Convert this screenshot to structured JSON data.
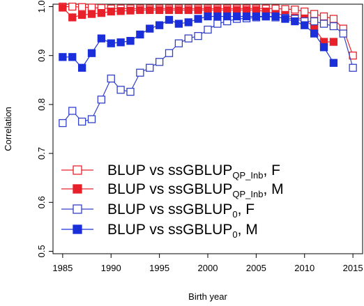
{
  "chart_data": {
    "type": "line",
    "xlabel": "Birth year",
    "ylabel": "Correlation",
    "xlim": [
      1984,
      2016
    ],
    "ylim": [
      0.495,
      1.005
    ],
    "xticks": [
      1985,
      1990,
      1995,
      2000,
      2005,
      2010,
      2015
    ],
    "yticks": [
      0.5,
      0.6,
      0.7,
      0.8,
      0.9,
      1.0
    ],
    "xtick_labels": [
      "1985",
      "1990",
      "1995",
      "2000",
      "2005",
      "2010",
      "2015"
    ],
    "ytick_labels": [
      "0.5",
      "0.6",
      "0.7",
      "0.8",
      "0.9",
      "1.0"
    ],
    "grid": false,
    "legend_position": "bottom-left",
    "series": [
      {
        "label_main": "BLUP vs ssGBLUP",
        "label_sub": "QP_Inb",
        "label_tail": ", F",
        "color": "#e8202a",
        "marker": "open-square",
        "x": [
          1985,
          1986,
          1987,
          1988,
          1989,
          1990,
          1991,
          1992,
          1993,
          1994,
          1995,
          1996,
          1997,
          1998,
          1999,
          2000,
          2001,
          2002,
          2003,
          2004,
          2005,
          2006,
          2007,
          2008,
          2009,
          2010,
          2011,
          2012,
          2013,
          2014,
          2015
        ],
        "y": [
          1.0,
          1.0,
          0.999,
          0.998,
          0.997,
          0.996,
          0.996,
          0.996,
          0.996,
          0.996,
          0.996,
          0.996,
          0.996,
          0.996,
          0.996,
          0.996,
          0.996,
          0.996,
          0.996,
          0.996,
          0.996,
          0.996,
          0.996,
          0.995,
          0.994,
          0.99,
          0.985,
          0.98,
          0.975,
          0.955,
          0.9
        ]
      },
      {
        "label_main": "BLUP vs ssGBLUP",
        "label_sub": "QP_Inb",
        "label_tail": ", M",
        "color": "#e8202a",
        "marker": "filled-square",
        "x": [
          1985,
          1986,
          1987,
          1988,
          1989,
          1990,
          1991,
          1992,
          1993,
          1994,
          1995,
          1996,
          1997,
          1998,
          1999,
          2000,
          2001,
          2002,
          2003,
          2004,
          2005,
          2006,
          2007,
          2008,
          2009,
          2010,
          2011,
          2012,
          2013
        ],
        "y": [
          0.998,
          0.978,
          0.983,
          0.985,
          0.987,
          0.99,
          0.991,
          0.992,
          0.993,
          0.993,
          0.993,
          0.993,
          0.993,
          0.993,
          0.993,
          0.993,
          0.993,
          0.993,
          0.993,
          0.993,
          0.993,
          0.99,
          0.985,
          0.983,
          0.977,
          0.975,
          0.957,
          0.928,
          0.928
        ]
      },
      {
        "label_main": "BLUP vs ssGBLUP",
        "label_sub": "0",
        "label_tail": ", F",
        "color": "#3340c8",
        "marker": "open-square",
        "x": [
          1985,
          1986,
          1987,
          1988,
          1989,
          1990,
          1991,
          1992,
          1993,
          1994,
          1995,
          1996,
          1997,
          1998,
          1999,
          2000,
          2001,
          2002,
          2003,
          2004,
          2005,
          2006,
          2007,
          2008,
          2009,
          2010,
          2011,
          2012,
          2013,
          2014,
          2015
        ],
        "y": [
          0.762,
          0.787,
          0.765,
          0.77,
          0.81,
          0.853,
          0.83,
          0.826,
          0.865,
          0.875,
          0.887,
          0.905,
          0.925,
          0.935,
          0.94,
          0.953,
          0.965,
          0.97,
          0.975,
          0.976,
          0.978,
          0.98,
          0.978,
          0.977,
          0.975,
          0.97,
          0.97,
          0.965,
          0.96,
          0.945,
          0.875
        ]
      },
      {
        "label_main": "BLUP vs ssGBLUP",
        "label_sub": "0",
        "label_tail": ", M",
        "color": "#1a2fd9",
        "marker": "filled-square",
        "x": [
          1985,
          1986,
          1987,
          1988,
          1989,
          1990,
          1991,
          1992,
          1993,
          1994,
          1995,
          1996,
          1997,
          1998,
          1999,
          2000,
          2001,
          2002,
          2003,
          2004,
          2005,
          2006,
          2007,
          2008,
          2009,
          2010,
          2011,
          2012,
          2013
        ],
        "y": [
          0.897,
          0.897,
          0.875,
          0.905,
          0.935,
          0.925,
          0.927,
          0.93,
          0.943,
          0.955,
          0.962,
          0.973,
          0.965,
          0.968,
          0.975,
          0.98,
          0.98,
          0.98,
          0.98,
          0.98,
          0.98,
          0.98,
          0.98,
          0.975,
          0.97,
          0.962,
          0.945,
          0.917,
          0.885
        ]
      }
    ]
  }
}
